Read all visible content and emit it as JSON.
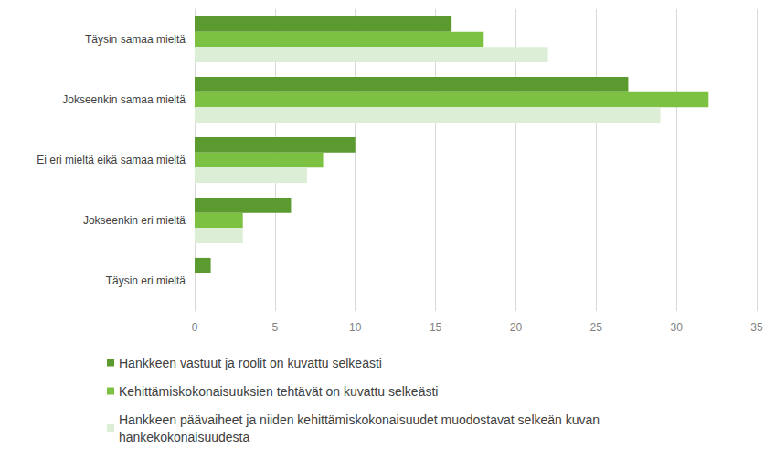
{
  "chart_data": {
    "type": "bar",
    "orientation": "horizontal",
    "grid": true,
    "legend": "bottom",
    "categories": [
      "Täysin samaa mieltä",
      "Jokseenkin samaa mieltä",
      "Ei eri mieltä eikä samaa mieltä",
      "Jokseenkin eri mieltä",
      "Täysin eri mieltä"
    ],
    "series": [
      {
        "name": "Hankkeen vastuut ja roolit on kuvattu selkeästi",
        "color": "#5a9a2f",
        "values": [
          16,
          27,
          10,
          6,
          1
        ]
      },
      {
        "name": "Kehittämiskokonaisuuksien tehtävät on kuvattu selkeästi",
        "color": "#7dc142",
        "values": [
          18,
          32,
          8,
          3,
          0
        ]
      },
      {
        "name": "Hankkeen päävaiheet ja niiden kehittämiskokonaisuudet muodostavat selkeän kuvan hankekokonaisuudesta",
        "color": "#dcefd6",
        "values": [
          22,
          29,
          7,
          3,
          0
        ]
      }
    ],
    "xlim": [
      0,
      35
    ],
    "xticks": [
      0,
      5,
      10,
      15,
      20,
      25,
      30,
      35
    ]
  }
}
